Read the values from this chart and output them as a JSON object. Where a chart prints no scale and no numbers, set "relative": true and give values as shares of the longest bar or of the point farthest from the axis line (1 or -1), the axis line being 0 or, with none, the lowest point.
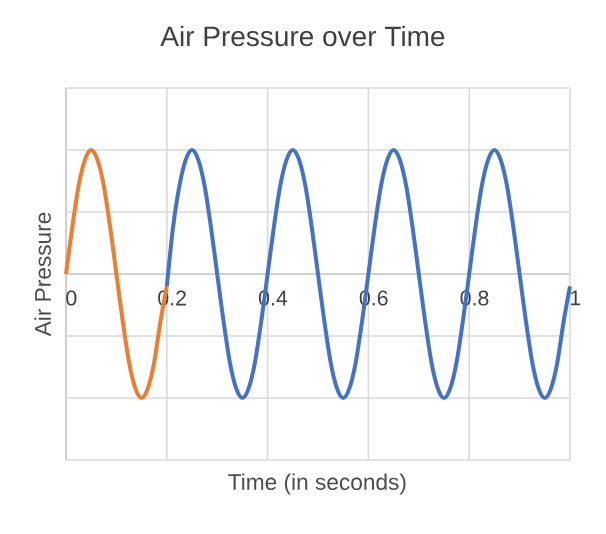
{
  "chart_data": {
    "type": "line",
    "title": "Air Pressure over Time",
    "xlabel": "Time (in seconds)",
    "ylabel": "Air Pressure",
    "relative": true,
    "xlim": [
      0,
      1
    ],
    "xticks": [
      0,
      0.2,
      0.4,
      0.6,
      0.8,
      1
    ],
    "grid": true,
    "line_style": "solid",
    "marker": "none",
    "series": [
      {
        "color": "#4472c4",
        "x": [
          0.2,
          0.2125,
          0.225,
          0.2375,
          0.25,
          0.2625,
          0.275,
          0.2875,
          0.3,
          0.3125,
          0.325,
          0.3375,
          0.35,
          0.3625,
          0.375,
          0.3875,
          0.4,
          0.4125,
          0.425,
          0.4375,
          0.45,
          0.4625,
          0.475,
          0.4875,
          0.5,
          0.5125,
          0.525,
          0.5375,
          0.55,
          0.5625,
          0.575,
          0.5875,
          0.6,
          0.6125,
          0.625,
          0.6375,
          0.65,
          0.6625,
          0.675,
          0.6875,
          0.7,
          0.7125,
          0.725,
          0.7375,
          0.75,
          0.7625,
          0.775,
          0.7875,
          0.8,
          0.8125,
          0.825,
          0.8375,
          0.85,
          0.8625,
          0.875,
          0.8875,
          0.9,
          0.9125,
          0.925,
          0.9375,
          0.95,
          0.9625,
          0.975,
          0.9875,
          1
        ],
        "values": [
          -0.1,
          0.38,
          0.71,
          0.92,
          1,
          0.92,
          0.71,
          0.38,
          0,
          -0.38,
          -0.71,
          -0.92,
          -1,
          -0.92,
          -0.71,
          -0.38,
          0,
          0.38,
          0.71,
          0.92,
          1,
          0.92,
          0.71,
          0.38,
          0,
          -0.38,
          -0.71,
          -0.92,
          -1,
          -0.92,
          -0.71,
          -0.38,
          0,
          0.38,
          0.71,
          0.92,
          1,
          0.92,
          0.71,
          0.38,
          0,
          -0.38,
          -0.71,
          -0.92,
          -1,
          -0.92,
          -0.71,
          -0.38,
          0,
          0.38,
          0.71,
          0.92,
          1,
          0.92,
          0.71,
          0.38,
          0,
          -0.38,
          -0.71,
          -0.92,
          -1,
          -0.92,
          -0.71,
          -0.38,
          -0.1
        ]
      },
      {
        "color": "#ed7d31",
        "x": [
          0,
          0.0125,
          0.025,
          0.0375,
          0.05,
          0.0625,
          0.075,
          0.0875,
          0.1,
          0.1125,
          0.125,
          0.1375,
          0.15,
          0.1625,
          0.175,
          0.1875,
          0.2
        ],
        "values": [
          0,
          0.38,
          0.71,
          0.92,
          1,
          0.92,
          0.71,
          0.38,
          0,
          -0.38,
          -0.71,
          -0.92,
          -1,
          -0.92,
          -0.71,
          -0.38,
          -0.1
        ]
      }
    ]
  }
}
